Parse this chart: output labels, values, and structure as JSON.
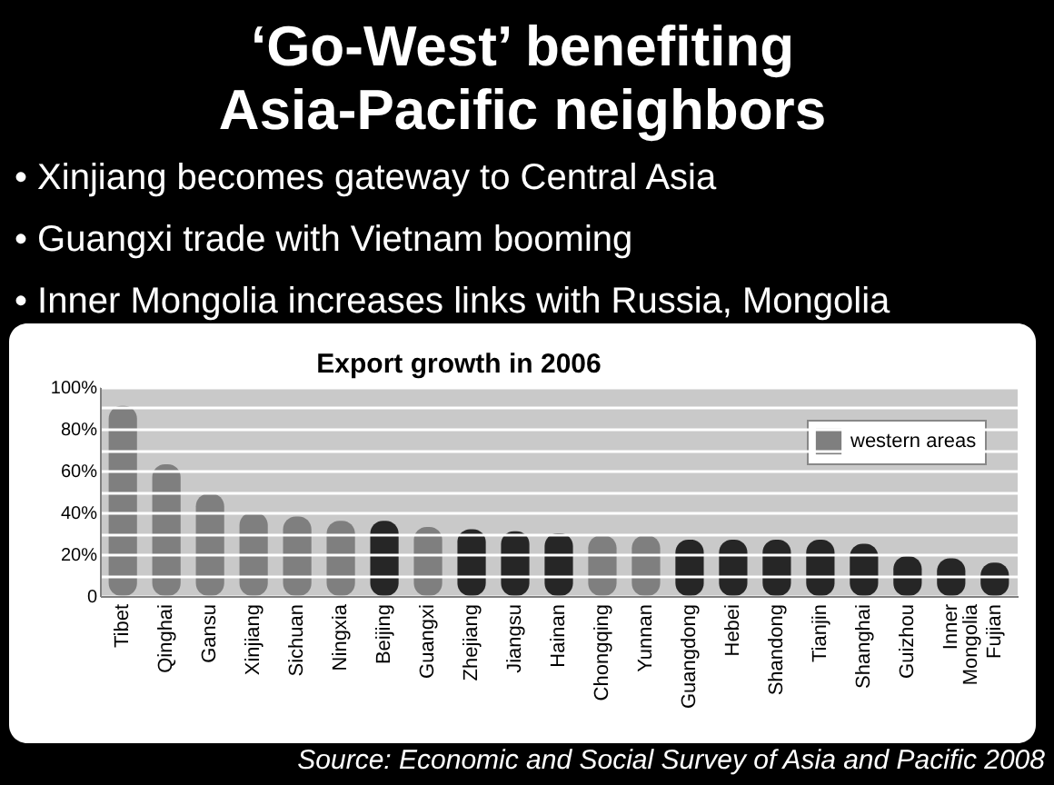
{
  "chart_data": {
    "type": "bar",
    "title": "‘Go-West’ benefiting Asia-Pacific neighbors",
    "subtitle": "Export growth in 2006",
    "annotations": [
      "• Xinjiang becomes gateway to Central Asia",
      "• Guangxi trade with Vietnam booming",
      "• Inner Mongolia increases links with Russia, Mongolia",
      "Source: Economic and Social Survey of Asia and Pacific 2008"
    ],
    "categories": [
      "Tibet",
      "Qinghai",
      "Gansu",
      "Xinjiang",
      "Sichuan",
      "Ningxia",
      "Beijing",
      "Guangxi",
      "Zhejiang",
      "Jiangsu",
      "Hainan",
      "Chongqing",
      "Yunnan",
      "Guangdong",
      "Hebei",
      "Shandong",
      "Tianjin",
      "Shanghai",
      "Guizhou",
      "Inner Mongolia",
      "Fujian"
    ],
    "series": [
      {
        "name": "western areas",
        "color": "#7f7f7f",
        "values": [
          91,
          63,
          49,
          40,
          38,
          36,
          null,
          33,
          null,
          null,
          null,
          29,
          29,
          null,
          null,
          null,
          null,
          null,
          null,
          null,
          null
        ]
      },
      {
        "color": "#262626",
        "values": [
          null,
          null,
          null,
          null,
          null,
          null,
          36,
          null,
          32,
          31,
          30,
          null,
          null,
          27,
          27,
          27,
          27,
          25,
          19,
          18,
          16
        ]
      }
    ],
    "ylim": [
      0,
      100
    ],
    "yticks": [
      0,
      {
        "value": 10,
        "label": null
      },
      {
        "value": 20,
        "label": "20%"
      },
      {
        "value": 30,
        "label": null
      },
      {
        "value": 40,
        "label": "40%"
      },
      {
        "value": 50,
        "label": null
      },
      {
        "value": 60,
        "label": "60%"
      },
      {
        "value": 70,
        "label": null
      },
      {
        "value": 80,
        "label": "80%"
      },
      {
        "value": 90,
        "label": null
      },
      {
        "value": 100,
        "label": "100%"
      }
    ],
    "grid": "y",
    "legend": "top right"
  }
}
